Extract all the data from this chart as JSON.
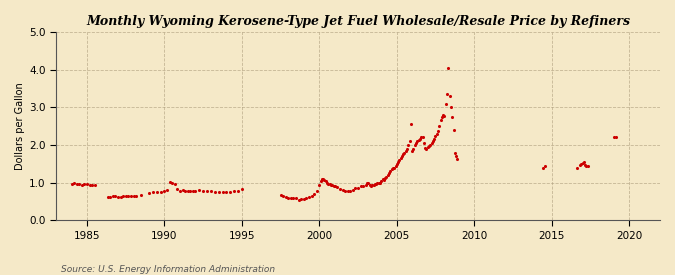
{
  "title": "Monthly Wyoming Kerosene-Type Jet Fuel Wholesale/Resale Price by Refiners",
  "ylabel": "Dollars per Gallon",
  "source": "Source: U.S. Energy Information Administration",
  "background_color": "#f5e9c8",
  "plot_bg_color": "#f5e9c8",
  "dot_color": "#cc0000",
  "xlim": [
    1983.0,
    2022.0
  ],
  "ylim": [
    0.0,
    5.0
  ],
  "xticks": [
    1985,
    1990,
    1995,
    2000,
    2005,
    2010,
    2015,
    2020
  ],
  "yticks": [
    0.0,
    1.0,
    2.0,
    3.0,
    4.0,
    5.0
  ],
  "data": [
    [
      1984.0,
      0.97
    ],
    [
      1984.17,
      0.98
    ],
    [
      1984.33,
      0.96
    ],
    [
      1984.5,
      0.96
    ],
    [
      1984.67,
      0.95
    ],
    [
      1984.83,
      0.97
    ],
    [
      1985.0,
      0.97
    ],
    [
      1985.17,
      0.95
    ],
    [
      1985.33,
      0.94
    ],
    [
      1985.5,
      0.93
    ],
    [
      1986.33,
      0.62
    ],
    [
      1986.5,
      0.63
    ],
    [
      1986.67,
      0.65
    ],
    [
      1986.83,
      0.64
    ],
    [
      1987.0,
      0.62
    ],
    [
      1987.17,
      0.63
    ],
    [
      1987.33,
      0.64
    ],
    [
      1987.5,
      0.65
    ],
    [
      1987.67,
      0.64
    ],
    [
      1987.83,
      0.65
    ],
    [
      1988.0,
      0.65
    ],
    [
      1988.17,
      0.64
    ],
    [
      1988.5,
      0.66
    ],
    [
      1989.0,
      0.72
    ],
    [
      1989.25,
      0.74
    ],
    [
      1989.5,
      0.75
    ],
    [
      1989.75,
      0.76
    ],
    [
      1990.0,
      0.78
    ],
    [
      1990.17,
      0.8
    ],
    [
      1990.33,
      1.02
    ],
    [
      1990.5,
      1.0
    ],
    [
      1990.67,
      0.97
    ],
    [
      1990.83,
      0.83
    ],
    [
      1991.0,
      0.79
    ],
    [
      1991.17,
      0.8
    ],
    [
      1991.33,
      0.79
    ],
    [
      1991.5,
      0.77
    ],
    [
      1991.67,
      0.78
    ],
    [
      1991.83,
      0.77
    ],
    [
      1992.0,
      0.78
    ],
    [
      1992.25,
      0.8
    ],
    [
      1992.5,
      0.78
    ],
    [
      1992.75,
      0.78
    ],
    [
      1993.0,
      0.77
    ],
    [
      1993.25,
      0.76
    ],
    [
      1993.5,
      0.75
    ],
    [
      1993.75,
      0.76
    ],
    [
      1994.0,
      0.75
    ],
    [
      1994.25,
      0.76
    ],
    [
      1994.5,
      0.77
    ],
    [
      1994.75,
      0.78
    ],
    [
      1995.0,
      0.82
    ],
    [
      1997.5,
      0.68
    ],
    [
      1997.67,
      0.65
    ],
    [
      1997.83,
      0.63
    ],
    [
      1998.0,
      0.6
    ],
    [
      1998.17,
      0.6
    ],
    [
      1998.33,
      0.58
    ],
    [
      1998.5,
      0.6
    ],
    [
      1998.67,
      0.55
    ],
    [
      1998.83,
      0.57
    ],
    [
      1999.0,
      0.57
    ],
    [
      1999.17,
      0.6
    ],
    [
      1999.33,
      0.63
    ],
    [
      1999.5,
      0.65
    ],
    [
      1999.67,
      0.7
    ],
    [
      1999.83,
      0.78
    ],
    [
      2000.0,
      0.95
    ],
    [
      2000.08,
      1.05
    ],
    [
      2000.17,
      1.1
    ],
    [
      2000.25,
      1.1
    ],
    [
      2000.33,
      1.08
    ],
    [
      2000.42,
      1.05
    ],
    [
      2000.5,
      1.0
    ],
    [
      2000.58,
      0.97
    ],
    [
      2000.67,
      0.96
    ],
    [
      2000.75,
      0.94
    ],
    [
      2000.83,
      0.93
    ],
    [
      2000.92,
      0.92
    ],
    [
      2001.0,
      0.9
    ],
    [
      2001.17,
      0.88
    ],
    [
      2001.33,
      0.83
    ],
    [
      2001.5,
      0.8
    ],
    [
      2001.67,
      0.78
    ],
    [
      2001.83,
      0.77
    ],
    [
      2002.0,
      0.77
    ],
    [
      2002.17,
      0.8
    ],
    [
      2002.33,
      0.85
    ],
    [
      2002.5,
      0.87
    ],
    [
      2002.67,
      0.9
    ],
    [
      2002.83,
      0.92
    ],
    [
      2003.0,
      0.95
    ],
    [
      2003.08,
      1.0
    ],
    [
      2003.17,
      0.98
    ],
    [
      2003.25,
      0.95
    ],
    [
      2003.33,
      0.92
    ],
    [
      2003.42,
      0.93
    ],
    [
      2003.5,
      0.95
    ],
    [
      2003.58,
      0.97
    ],
    [
      2003.67,
      0.97
    ],
    [
      2003.75,
      0.98
    ],
    [
      2003.83,
      0.98
    ],
    [
      2003.92,
      1.0
    ],
    [
      2004.0,
      1.05
    ],
    [
      2004.08,
      1.1
    ],
    [
      2004.17,
      1.08
    ],
    [
      2004.25,
      1.12
    ],
    [
      2004.33,
      1.15
    ],
    [
      2004.42,
      1.2
    ],
    [
      2004.5,
      1.25
    ],
    [
      2004.58,
      1.3
    ],
    [
      2004.67,
      1.35
    ],
    [
      2004.75,
      1.38
    ],
    [
      2004.83,
      1.4
    ],
    [
      2004.92,
      1.45
    ],
    [
      2005.0,
      1.5
    ],
    [
      2005.08,
      1.55
    ],
    [
      2005.17,
      1.6
    ],
    [
      2005.25,
      1.65
    ],
    [
      2005.33,
      1.7
    ],
    [
      2005.42,
      1.75
    ],
    [
      2005.5,
      1.8
    ],
    [
      2005.58,
      1.85
    ],
    [
      2005.67,
      1.9
    ],
    [
      2005.75,
      2.0
    ],
    [
      2005.83,
      2.1
    ],
    [
      2005.92,
      2.55
    ],
    [
      2006.0,
      1.85
    ],
    [
      2006.08,
      1.9
    ],
    [
      2006.17,
      2.0
    ],
    [
      2006.25,
      2.05
    ],
    [
      2006.33,
      2.1
    ],
    [
      2006.42,
      2.12
    ],
    [
      2006.5,
      2.15
    ],
    [
      2006.58,
      2.2
    ],
    [
      2006.67,
      2.22
    ],
    [
      2006.75,
      2.05
    ],
    [
      2006.83,
      1.92
    ],
    [
      2006.92,
      1.9
    ],
    [
      2007.0,
      1.95
    ],
    [
      2007.08,
      1.98
    ],
    [
      2007.17,
      2.0
    ],
    [
      2007.25,
      2.05
    ],
    [
      2007.33,
      2.1
    ],
    [
      2007.42,
      2.15
    ],
    [
      2007.5,
      2.25
    ],
    [
      2007.58,
      2.3
    ],
    [
      2007.67,
      2.38
    ],
    [
      2007.75,
      2.5
    ],
    [
      2007.83,
      2.65
    ],
    [
      2007.92,
      2.75
    ],
    [
      2008.0,
      2.8
    ],
    [
      2008.08,
      2.78
    ],
    [
      2008.17,
      3.1
    ],
    [
      2008.25,
      3.35
    ],
    [
      2008.33,
      4.05
    ],
    [
      2008.42,
      3.3
    ],
    [
      2008.5,
      3.0
    ],
    [
      2008.58,
      2.75
    ],
    [
      2008.67,
      2.4
    ],
    [
      2008.75,
      1.8
    ],
    [
      2008.83,
      1.7
    ],
    [
      2008.92,
      1.62
    ],
    [
      2014.42,
      1.4
    ],
    [
      2014.58,
      1.45
    ],
    [
      2016.67,
      1.4
    ],
    [
      2016.83,
      1.48
    ],
    [
      2016.92,
      1.5
    ],
    [
      2017.0,
      1.52
    ],
    [
      2017.08,
      1.55
    ],
    [
      2017.17,
      1.48
    ],
    [
      2017.25,
      1.43
    ],
    [
      2017.33,
      1.45
    ],
    [
      2019.0,
      2.2
    ],
    [
      2019.17,
      2.22
    ]
  ]
}
